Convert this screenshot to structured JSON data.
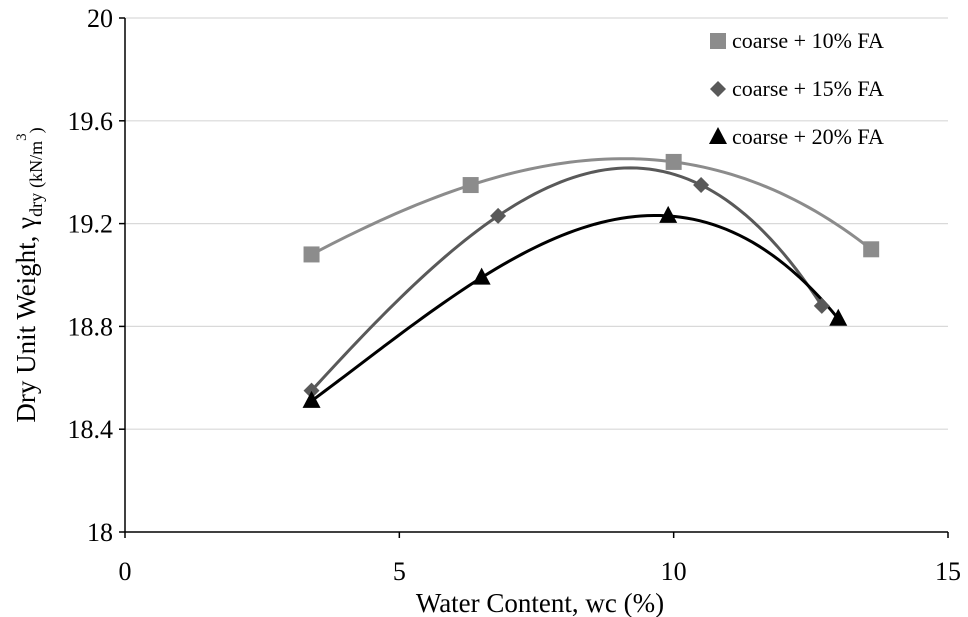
{
  "chart_data": {
    "type": "scatter",
    "title": "",
    "xlabel": "Water Content, wc (%)",
    "ylabel": {
      "main": "Dry Unit Weight, γ",
      "subscript": "dry",
      "unit": "(kN/m",
      "unit_sup": "3",
      "unit_close": ")"
    },
    "xlim": [
      0,
      15
    ],
    "ylim": [
      18,
      20
    ],
    "xticks": [
      "0",
      "5",
      "10",
      "15"
    ],
    "yticks": [
      "18",
      "18.4",
      "18.8",
      "19.2",
      "19.6",
      "20"
    ],
    "grid": "horizontal",
    "legend_position": "top-right",
    "series": [
      {
        "name": "coarse + 10% FA",
        "marker": "square",
        "color": "#8c8c8c",
        "points": [
          [
            3.4,
            19.08
          ],
          [
            6.3,
            19.35
          ],
          [
            10.0,
            19.44
          ],
          [
            13.6,
            19.1
          ]
        ]
      },
      {
        "name": "coarse + 15% FA",
        "marker": "diamond",
        "color": "#595959",
        "points": [
          [
            3.4,
            18.55
          ],
          [
            6.8,
            19.23
          ],
          [
            10.5,
            19.35
          ],
          [
            12.7,
            18.88
          ]
        ]
      },
      {
        "name": "coarse + 20% FA",
        "marker": "triangle",
        "color": "#000000",
        "points": [
          [
            3.4,
            18.51
          ],
          [
            6.5,
            18.99
          ],
          [
            9.9,
            19.23
          ],
          [
            13.0,
            18.83
          ]
        ]
      }
    ]
  }
}
